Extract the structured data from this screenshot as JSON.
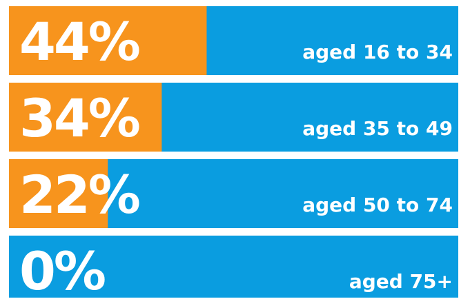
{
  "chart_data": {
    "type": "bar",
    "orientation": "horizontal",
    "categories": [
      "aged 16 to 34",
      "aged 35 to 49",
      "aged 50 to 74",
      "aged 75+"
    ],
    "values": [
      44,
      34,
      22,
      0
    ],
    "value_labels": [
      "44%",
      "34%",
      "22%",
      "0%"
    ],
    "color": "#f7941d",
    "background_color": "#0a9de0",
    "xlim": [
      0,
      100
    ]
  }
}
